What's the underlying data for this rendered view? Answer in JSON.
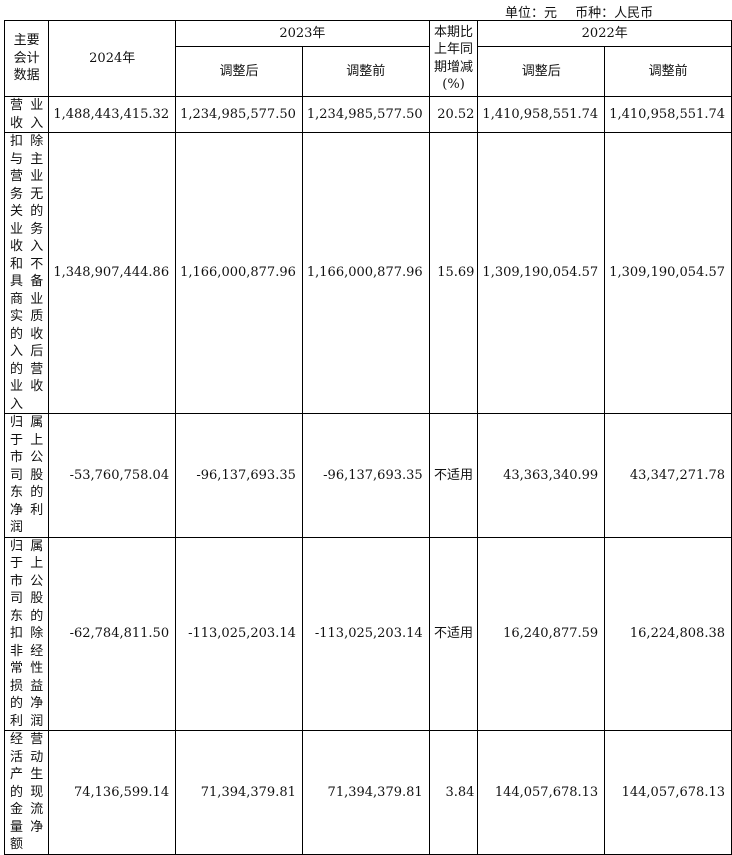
{
  "header_clip": "",
  "unit": {
    "unit_label": "单位：元",
    "currency_label": "币种：人民币"
  },
  "columns": {
    "metric": "主要会计数据",
    "y2024": "2024年",
    "y2023": "2023年",
    "y2023_adj": "调整后",
    "y2023_pre": "调整前",
    "change": "本期比上年同期增减(%)",
    "y2022": "2022年",
    "y2022_adj": "调整后",
    "y2022_pre": "调整前"
  },
  "rows": [
    {
      "label": "营业收入",
      "v2024": "1,488,443,415.32",
      "v2023_adj": "1,234,985,577.50",
      "v2023_pre": "1,234,985,577.50",
      "change": "20.52",
      "v2022_adj": "1,410,958,551.74",
      "v2022_pre": "1,410,958,551.74"
    },
    {
      "label": "扣除与主营业务无关的业务收入和不具备商业实质的收入后的营业收入",
      "v2024": "1,348,907,444.86",
      "v2023_adj": "1,166,000,877.96",
      "v2023_pre": "1,166,000,877.96",
      "change": "15.69",
      "v2022_adj": "1,309,190,054.57",
      "v2022_pre": "1,309,190,054.57"
    },
    {
      "label": "归属于上市公司股东的净利润",
      "v2024": "-53,760,758.04",
      "v2023_adj": "-96,137,693.35",
      "v2023_pre": "-96,137,693.35",
      "change": "不适用",
      "v2022_adj": "43,363,340.99",
      "v2022_pre": "43,347,271.78"
    },
    {
      "label": "归属于上市公司股东的扣除非经常性损益的净利润",
      "v2024": "-62,784,811.50",
      "v2023_adj": "-113,025,203.14",
      "v2023_pre": "-113,025,203.14",
      "change": "不适用",
      "v2022_adj": "16,240,877.59",
      "v2022_pre": "16,224,808.38"
    },
    {
      "label": "经营活动产生的现金流量净额",
      "v2024": "74,136,599.14",
      "v2023_adj": "71,394,379.81",
      "v2023_pre": "71,394,379.81",
      "change": "3.84",
      "v2022_adj": "144,057,678.13",
      "v2022_pre": "144,057,678.13"
    }
  ]
}
